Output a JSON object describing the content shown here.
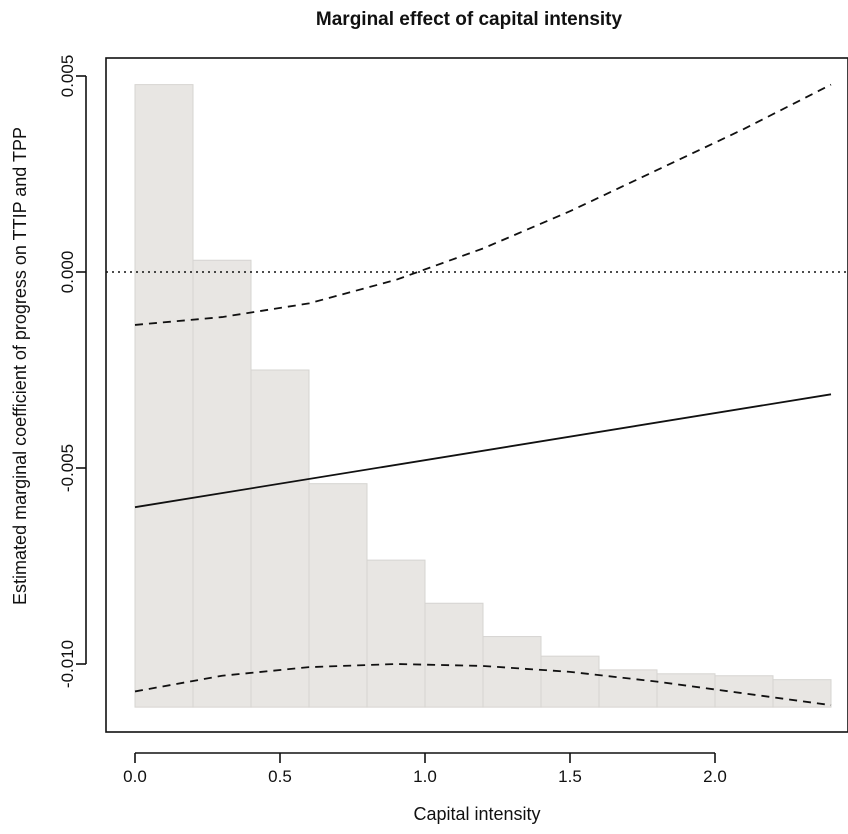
{
  "chart_data": {
    "type": "line",
    "title": "Marginal effect of capital intensity",
    "xlabel": "Capital intensity",
    "ylabel": "Estimated marginal coefficient of progress on TTIP and TPP",
    "xlim": [
      -0.1,
      2.45
    ],
    "ylim": [
      -0.0117,
      0.0052
    ],
    "x_ticks": [
      0.0,
      0.5,
      1.0,
      1.5,
      2.0
    ],
    "x_tick_labels": [
      "0.0",
      "0.5",
      "1.0",
      "1.5",
      "2.0"
    ],
    "y_ticks": [
      -0.01,
      -0.005,
      0.0,
      0.005
    ],
    "y_tick_labels": [
      "-0.010",
      "-0.005",
      "0.000",
      "0.005"
    ],
    "grid": false,
    "histogram": {
      "bin_width": 0.2,
      "bins": [
        {
          "x0": 0.0,
          "x1": 0.2,
          "top": 0.00478
        },
        {
          "x0": 0.2,
          "x1": 0.4,
          "top": 0.0003
        },
        {
          "x0": 0.4,
          "x1": 0.6,
          "top": -0.0025
        },
        {
          "x0": 0.6,
          "x1": 0.8,
          "top": -0.0054
        },
        {
          "x0": 0.8,
          "x1": 1.0,
          "top": -0.00735
        },
        {
          "x0": 1.0,
          "x1": 1.2,
          "top": -0.00845
        },
        {
          "x0": 1.2,
          "x1": 1.4,
          "top": -0.0093
        },
        {
          "x0": 1.4,
          "x1": 1.6,
          "top": -0.0098
        },
        {
          "x0": 1.6,
          "x1": 1.8,
          "top": -0.01015
        },
        {
          "x0": 1.8,
          "x1": 2.0,
          "top": -0.01025
        },
        {
          "x0": 2.0,
          "x1": 2.2,
          "top": -0.0103
        },
        {
          "x0": 2.2,
          "x1": 2.4,
          "top": -0.0104
        }
      ],
      "baseline": -0.0111,
      "fill_color": "#e8e6e3",
      "edge_color": "#d6d4d1"
    },
    "series": [
      {
        "style": "solid",
        "x": [
          0.0,
          2.4
        ],
        "y": [
          -0.006,
          -0.00312
        ]
      },
      {
        "style": "dashed",
        "x": [
          0.0,
          0.3,
          0.6,
          0.9,
          1.2,
          1.5,
          1.8,
          2.1,
          2.4
        ],
        "y": [
          -0.00135,
          -0.00115,
          -0.0008,
          -0.0002,
          0.0006,
          0.00155,
          0.0026,
          0.00365,
          0.00478
        ]
      },
      {
        "style": "dashed",
        "x": [
          0.0,
          0.3,
          0.6,
          0.9,
          1.2,
          1.5,
          1.8,
          2.1,
          2.4
        ],
        "y": [
          -0.0107,
          -0.0103,
          -0.01008,
          -0.01,
          -0.01005,
          -0.0102,
          -0.01045,
          -0.01075,
          -0.01105
        ]
      }
    ],
    "reference_line": {
      "y": 0.0,
      "style": "dotted"
    },
    "line_color": "#111111"
  }
}
